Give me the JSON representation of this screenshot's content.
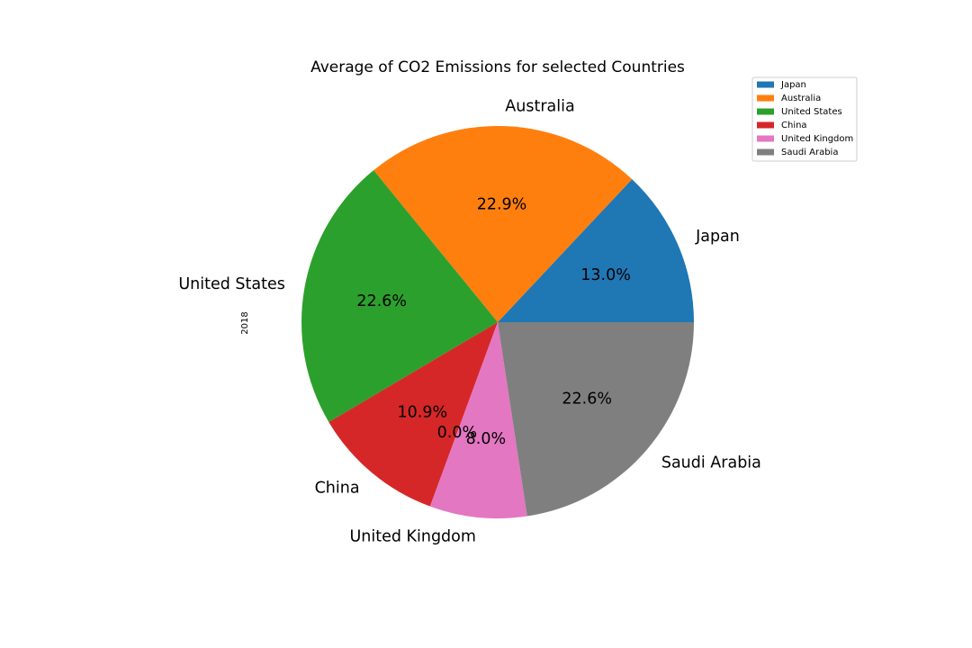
{
  "chart_data": {
    "type": "pie",
    "title": "Average of CO2 Emissions for selected Countries",
    "ylabel": "2018",
    "slices": [
      {
        "label": "Japan",
        "percent": 13.0,
        "percent_label": "13.0%",
        "color": "#1f77b4"
      },
      {
        "label": "Australia",
        "percent": 22.9,
        "percent_label": "22.9%",
        "color": "#ff7f0e"
      },
      {
        "label": "United States",
        "percent": 22.6,
        "percent_label": "22.6%",
        "color": "#2ca02c"
      },
      {
        "label": "China",
        "percent": 10.9,
        "percent_label": "10.9%",
        "color": "#d62728"
      },
      {
        "label": "",
        "percent": 0.0,
        "percent_label": "0.0%",
        "color": "#9467bd"
      },
      {
        "label": "United Kingdom",
        "percent": 8.0,
        "percent_label": "8.0%",
        "color": "#e377c2"
      },
      {
        "label": "Saudi Arabia",
        "percent": 22.6,
        "percent_label": "22.6%",
        "color": "#7f7f7f"
      }
    ],
    "legend": {
      "placement": "top-right",
      "entries": [
        {
          "label": "Japan",
          "color": "#1f77b4"
        },
        {
          "label": "Australia",
          "color": "#ff7f0e"
        },
        {
          "label": "United States",
          "color": "#2ca02c"
        },
        {
          "label": "China",
          "color": "#d62728"
        },
        {
          "label": "United Kingdom",
          "color": "#e377c2"
        },
        {
          "label": "Saudi Arabia",
          "color": "#7f7f7f"
        }
      ]
    },
    "start_angle_deg": 0,
    "direction": "counterclockwise"
  }
}
